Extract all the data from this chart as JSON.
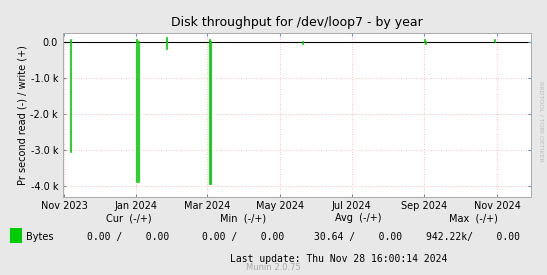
{
  "title": "Disk throughput for /dev/loop7 - by year",
  "ylabel": "Pr second read (-) / write (+)",
  "bg_color": "#e8e8e8",
  "plot_bg_color": "#ffffff",
  "grid_color": "#ffaaaa",
  "line_color": "#00cc00",
  "zero_line_color": "#000000",
  "border_color": "#aaaaaa",
  "xlim_start": 1698710400,
  "xlim_end": 1732838400,
  "ylim": [
    -4300,
    250
  ],
  "yticks": [
    0.0,
    -1000,
    -2000,
    -3000,
    -4000
  ],
  "ytick_labels": [
    "0.0",
    "-1.0 k",
    "-2.0 k",
    "-3.0 k",
    "-4.0 k"
  ],
  "xtick_positions": [
    1698796800,
    1704067200,
    1709251200,
    1714521600,
    1719792000,
    1725062400,
    1730419200
  ],
  "xtick_labels": [
    "Nov 2023",
    "Jan 2024",
    "Mar 2024",
    "May 2024",
    "Jul 2024",
    "Sep 2024",
    "Nov 2024"
  ],
  "spikes": [
    {
      "x": 1699315200,
      "y_min": -3050,
      "y_max": 0
    },
    {
      "x": 1704153600,
      "y_min": -3900,
      "y_max": 0
    },
    {
      "x": 1704240000,
      "y_min": -3900,
      "y_max": 0
    },
    {
      "x": 1706313600,
      "y_min": -200,
      "y_max": 0
    },
    {
      "x": 1709424000,
      "y_min": -3950,
      "y_max": 0
    },
    {
      "x": 1709510400,
      "y_min": -3950,
      "y_max": 0
    },
    {
      "x": 1716249600,
      "y_min": -50,
      "y_max": 0
    },
    {
      "x": 1725235200,
      "y_min": -50,
      "y_max": 0
    }
  ],
  "small_spikes": [
    {
      "x": 1699315200,
      "y_min": 0,
      "y_max": 60
    },
    {
      "x": 1704153600,
      "y_min": 0,
      "y_max": 60
    },
    {
      "x": 1706313600,
      "y_min": 0,
      "y_max": 100
    },
    {
      "x": 1709424000,
      "y_min": 0,
      "y_max": 60
    },
    {
      "x": 1725149000,
      "y_min": 0,
      "y_max": 60
    },
    {
      "x": 1730250000,
      "y_min": 0,
      "y_max": 60
    }
  ],
  "legend_label": "Bytes",
  "legend_color": "#00cc00",
  "cur_label": "Cur  (-/+)",
  "cur_val": "0.00 /    0.00",
  "min_label": "Min  (-/+)",
  "min_val": "0.00 /    0.00",
  "avg_label": "Avg  (-/+)",
  "avg_val": "30.64 /    0.00",
  "max_label": "Max  (-/+)",
  "max_val": "942.22k/    0.00",
  "last_update": "Last update: Thu Nov 28 16:00:14 2024",
  "munin_version": "Munin 2.0.75",
  "watermark": "RRDTOOL / TOBI OETIKER"
}
